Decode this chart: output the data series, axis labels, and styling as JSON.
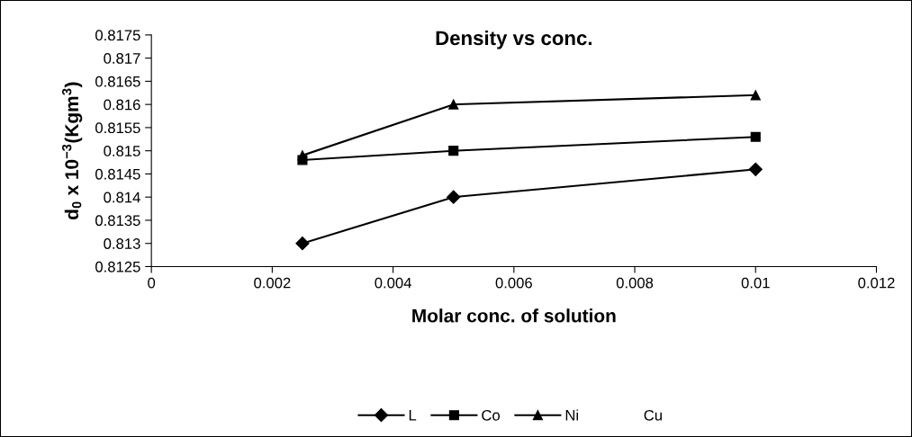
{
  "chart_data": {
    "type": "line",
    "title": "Density vs conc.",
    "xlabel": "Molar conc. of solution",
    "ylabel": "d$_{0}$ x 10$^{−3}$(Kgm$^{3}$)",
    "x": [
      0.0025,
      0.005,
      0.01
    ],
    "series": [
      {
        "name": "L",
        "color": "#000000",
        "marker": "diamond",
        "values": [
          0.813,
          0.814,
          0.8146
        ]
      },
      {
        "name": "Co",
        "color": "#000000",
        "marker": "square",
        "values": [
          0.8148,
          0.815,
          0.8153
        ]
      },
      {
        "name": "Ni",
        "color": "#000000",
        "marker": "triangle",
        "values": [
          0.8149,
          0.816,
          0.8162
        ]
      },
      {
        "name": "Cu",
        "values": [
          null,
          null,
          null
        ]
      }
    ],
    "xlim": [
      0,
      0.012
    ],
    "xticks": [
      0,
      0.002,
      0.004,
      0.006,
      0.008,
      0.01,
      0.012
    ],
    "ylim": [
      0.8125,
      0.8175
    ],
    "yticks": [
      0.8125,
      0.813,
      0.8135,
      0.814,
      0.8145,
      0.815,
      0.8155,
      0.816,
      0.8165,
      0.817,
      0.8175
    ],
    "grid": false,
    "legend": "bottom",
    "line_style": "solid"
  }
}
